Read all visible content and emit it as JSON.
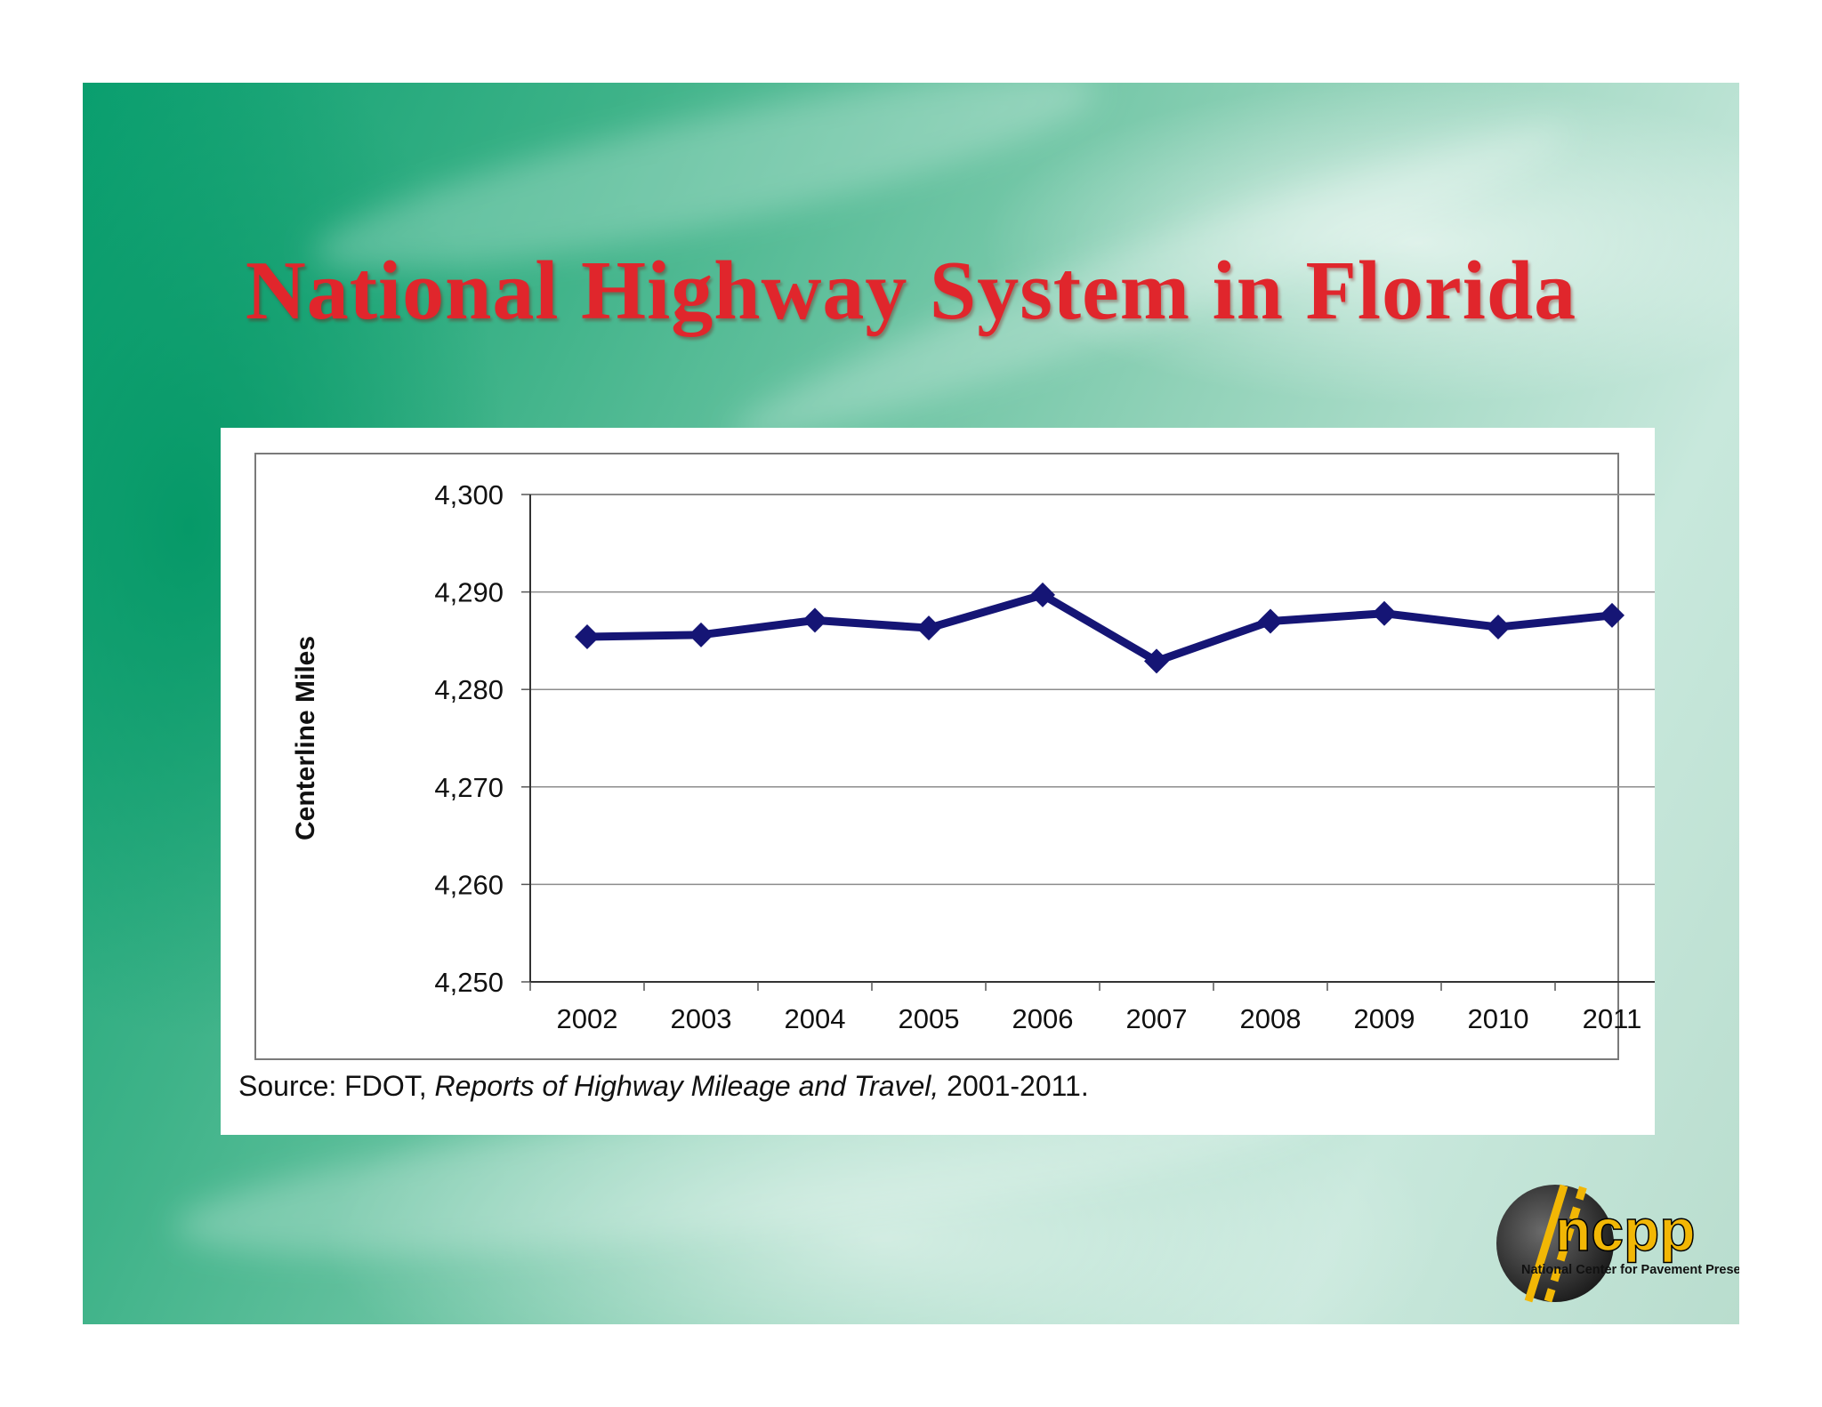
{
  "slide": {
    "title": "National Highway System in Florida"
  },
  "chart_data": {
    "type": "line",
    "title": "",
    "xlabel": "",
    "ylabel": "Centerline Miles",
    "categories": [
      "2002",
      "2003",
      "2004",
      "2005",
      "2006",
      "2007",
      "2008",
      "2009",
      "2010",
      "2011"
    ],
    "series": [
      {
        "values": [
          4285.4,
          4285.6,
          4287.1,
          4286.3,
          4289.7,
          4282.9,
          4287.0,
          4287.8,
          4286.4,
          4287.6
        ]
      }
    ],
    "ylim": [
      4250,
      4300
    ],
    "yticks": [
      4300,
      4290,
      4280,
      4270,
      4260,
      4250
    ],
    "ytick_labels": [
      "4,300",
      "4,290",
      "4,280",
      "4,270",
      "4,260",
      "4,250"
    ],
    "grid": true,
    "line_color": "#151575"
  },
  "source": {
    "prefix": "Source:  FDOT, ",
    "title": "Reports of Highway Mileage and Travel,",
    "suffix": " 2001-2011."
  },
  "logo": {
    "wordmark": "ncpp",
    "tagline": "National Center for Pavement Preservation"
  }
}
